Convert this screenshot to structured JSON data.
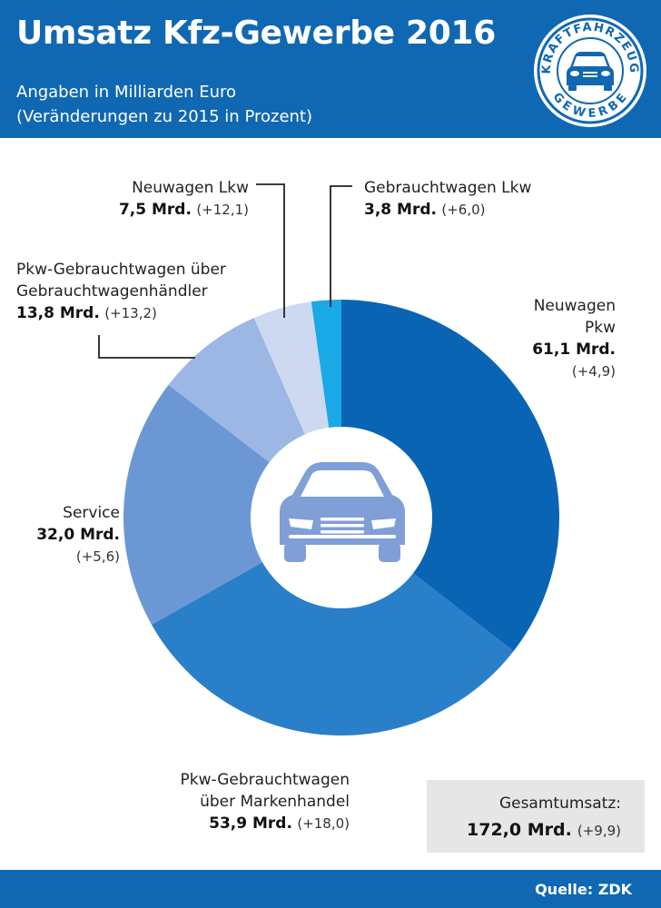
{
  "header": {
    "title": "Umsatz Kfz-Gewerbe 2016",
    "subtitle_line1": "Angaben in Milliarden Euro",
    "subtitle_line2": "(Veränderungen zu 2015 in Prozent)"
  },
  "logo": {
    "top_text": "KRAFTFAHRZEUG",
    "bottom_text": "GEWERBE"
  },
  "labels": {
    "neuwagen_pkw": {
      "name1": "Neuwagen",
      "name2": "Pkw",
      "value": "61,1 Mrd.",
      "change": "(+4,9)"
    },
    "pkw_markenhandel": {
      "name1": "Pkw-Gebrauchtwagen",
      "name2": "über Markenhandel",
      "value": "53,9 Mrd.",
      "change": "(+18,0)"
    },
    "service": {
      "name1": "Service",
      "value": "32,0 Mrd.",
      "change": "(+5,6)"
    },
    "pkw_gwh": {
      "name1": "Pkw-Gebrauchtwagen über",
      "name2": "Gebrauchtwagenhändler",
      "value": "13,8 Mrd.",
      "change": "(+13,2)"
    },
    "neuwagen_lkw": {
      "name1": "Neuwagen Lkw",
      "value": "7,5 Mrd.",
      "change": "(+12,1)"
    },
    "gebraucht_lkw": {
      "name1": "Gebrauchtwagen Lkw",
      "value": "3,8 Mrd.",
      "change": "(+6,0)"
    }
  },
  "total": {
    "label": "Gesamtumsatz:",
    "value": "172,0 Mrd.",
    "change": "(+9,9)"
  },
  "footer": {
    "source": "Quelle: ZDK"
  },
  "colors": {
    "header_bg": "#1068b3",
    "neuwagen_pkw": "#0a64b4",
    "pkw_markenhandel": "#2a7fc9",
    "service": "#6b98d4",
    "pkw_gwh": "#9cb7e3",
    "neuwagen_lkw": "#cdd9f0",
    "gebraucht_lkw": "#18a9e6",
    "car_icon": "#7f9fd6"
  },
  "chart_data": {
    "type": "pie",
    "style": "donut",
    "title": "Umsatz Kfz-Gewerbe 2016",
    "subtitle": "Angaben in Milliarden Euro (Veränderungen zu 2015 in Prozent)",
    "unit": "Mrd. Euro",
    "total": 172.0,
    "total_change_pct": 9.9,
    "slices": [
      {
        "name": "Neuwagen Pkw",
        "value": 61.1,
        "change_pct": 4.9,
        "color_key": "neuwagen_pkw"
      },
      {
        "name": "Pkw-Gebrauchtwagen über Markenhandel",
        "value": 53.9,
        "change_pct": 18.0,
        "color_key": "pkw_markenhandel"
      },
      {
        "name": "Service",
        "value": 32.0,
        "change_pct": 5.6,
        "color_key": "service"
      },
      {
        "name": "Pkw-Gebrauchtwagen über Gebrauchtwagenhändler",
        "value": 13.8,
        "change_pct": 13.2,
        "color_key": "pkw_gwh"
      },
      {
        "name": "Neuwagen Lkw",
        "value": 7.5,
        "change_pct": 12.1,
        "color_key": "neuwagen_lkw"
      },
      {
        "name": "Gebrauchtwagen Lkw",
        "value": 3.8,
        "change_pct": 6.0,
        "color_key": "gebraucht_lkw"
      }
    ]
  }
}
